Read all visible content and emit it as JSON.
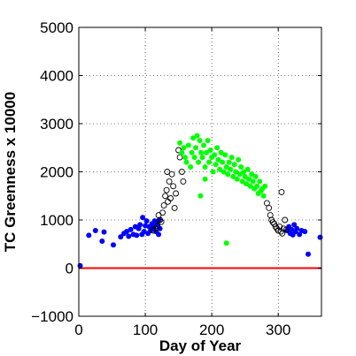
{
  "chart_data": {
    "type": "scatter",
    "title": "",
    "xlabel": "Day of Year",
    "ylabel": "TC Greenness x 10000",
    "xlim": [
      0,
      365
    ],
    "ylim": [
      -1000,
      5000
    ],
    "xticks": [
      0,
      100,
      200,
      300
    ],
    "yticks": [
      -1000,
      0,
      1000,
      2000,
      3000,
      4000,
      5000
    ],
    "xtick_labels": [
      "0",
      "100",
      "200",
      "300"
    ],
    "ytick_labels": [
      "−1000",
      "0",
      "1000",
      "2000",
      "3000",
      "4000",
      "5000"
    ],
    "grid": true,
    "grid_style": "dotted",
    "reference_line": {
      "y": 0,
      "color": "#ff0000"
    },
    "series": [
      {
        "style": "filled-blue",
        "color": "#0000ff",
        "points": [
          [
            2,
            50
          ],
          [
            15,
            680
          ],
          [
            25,
            780
          ],
          [
            35,
            560
          ],
          [
            38,
            750
          ],
          [
            52,
            480
          ],
          [
            63,
            650
          ],
          [
            68,
            720
          ],
          [
            72,
            760
          ],
          [
            75,
            660
          ],
          [
            78,
            800
          ],
          [
            82,
            700
          ],
          [
            85,
            860
          ],
          [
            87,
            680
          ],
          [
            90,
            820
          ],
          [
            92,
            900
          ],
          [
            95,
            700
          ],
          [
            96,
            1050
          ],
          [
            98,
            760
          ],
          [
            100,
            880
          ],
          [
            102,
            980
          ],
          [
            104,
            720
          ],
          [
            106,
            860
          ],
          [
            108,
            780
          ],
          [
            110,
            920
          ],
          [
            112,
            840
          ],
          [
            114,
            980
          ],
          [
            116,
            760
          ],
          [
            118,
            900
          ],
          [
            120,
            700
          ],
          [
            121,
            1000
          ],
          [
            122,
            820
          ],
          [
            313,
            780
          ],
          [
            316,
            860
          ],
          [
            318,
            720
          ],
          [
            320,
            800
          ],
          [
            322,
            690
          ],
          [
            324,
            900
          ],
          [
            326,
            760
          ],
          [
            328,
            820
          ],
          [
            332,
            700
          ],
          [
            335,
            780
          ],
          [
            340,
            760
          ],
          [
            345,
            290
          ],
          [
            363,
            640
          ]
        ]
      },
      {
        "style": "open-circle",
        "color": "#000000",
        "points": [
          [
            112,
            780
          ],
          [
            115,
            820
          ],
          [
            118,
            880
          ],
          [
            120,
            1100
          ],
          [
            122,
            1000
          ],
          [
            124,
            960
          ],
          [
            126,
            1150
          ],
          [
            128,
            1300
          ],
          [
            130,
            1500
          ],
          [
            132,
            1620
          ],
          [
            133,
            2000
          ],
          [
            134,
            1380
          ],
          [
            136,
            1800
          ],
          [
            138,
            1450
          ],
          [
            140,
            1950
          ],
          [
            142,
            1700
          ],
          [
            144,
            1250
          ],
          [
            146,
            1550
          ],
          [
            150,
            2450
          ],
          [
            152,
            2300
          ],
          [
            155,
            2000
          ],
          [
            157,
            1800
          ],
          [
            283,
            1350
          ],
          [
            286,
            1250
          ],
          [
            288,
            1100
          ],
          [
            290,
            1000
          ],
          [
            292,
            950
          ],
          [
            294,
            920
          ],
          [
            296,
            860
          ],
          [
            298,
            820
          ],
          [
            300,
            780
          ],
          [
            302,
            860
          ],
          [
            304,
            760
          ],
          [
            306,
            720
          ],
          [
            308,
            820
          ],
          [
            310,
            1000
          ],
          [
            312,
            800
          ],
          [
            305,
            1580
          ]
        ]
      },
      {
        "style": "filled-green",
        "color": "#00ff00",
        "points": [
          [
            152,
            2600
          ],
          [
            155,
            2400
          ],
          [
            158,
            2500
          ],
          [
            160,
            2300
          ],
          [
            162,
            2200
          ],
          [
            165,
            2550
          ],
          [
            168,
            2100
          ],
          [
            170,
            2400
          ],
          [
            172,
            2700
          ],
          [
            174,
            2300
          ],
          [
            176,
            2500
          ],
          [
            178,
            2750
          ],
          [
            180,
            2200
          ],
          [
            182,
            2650
          ],
          [
            184,
            2400
          ],
          [
            186,
            2300
          ],
          [
            188,
            2550
          ],
          [
            190,
            2100
          ],
          [
            192,
            2400
          ],
          [
            194,
            2650
          ],
          [
            196,
            2200
          ],
          [
            198,
            2450
          ],
          [
            200,
            2300
          ],
          [
            202,
            2000
          ],
          [
            204,
            2350
          ],
          [
            206,
            2150
          ],
          [
            208,
            2500
          ],
          [
            210,
            2250
          ],
          [
            212,
            2050
          ],
          [
            214,
            2400
          ],
          [
            216,
            2200
          ],
          [
            218,
            2000
          ],
          [
            220,
            2350
          ],
          [
            222,
            2100
          ],
          [
            224,
            1950
          ],
          [
            226,
            2200
          ],
          [
            228,
            2050
          ],
          [
            230,
            2300
          ],
          [
            232,
            1900
          ],
          [
            234,
            2150
          ],
          [
            236,
            2000
          ],
          [
            238,
            1850
          ],
          [
            240,
            2250
          ],
          [
            242,
            1950
          ],
          [
            244,
            2100
          ],
          [
            246,
            1800
          ],
          [
            248,
            2000
          ],
          [
            250,
            1900
          ],
          [
            252,
            1750
          ],
          [
            254,
            2050
          ],
          [
            256,
            1850
          ],
          [
            258,
            1700
          ],
          [
            260,
            1950
          ],
          [
            262,
            1800
          ],
          [
            264,
            1650
          ],
          [
            266,
            1900
          ],
          [
            268,
            1700
          ],
          [
            270,
            1550
          ],
          [
            272,
            1800
          ],
          [
            274,
            1600
          ],
          [
            276,
            1650
          ],
          [
            278,
            1500
          ],
          [
            280,
            1700
          ],
          [
            190,
            1850
          ],
          [
            183,
            1500
          ],
          [
            222,
            520
          ]
        ]
      }
    ]
  }
}
